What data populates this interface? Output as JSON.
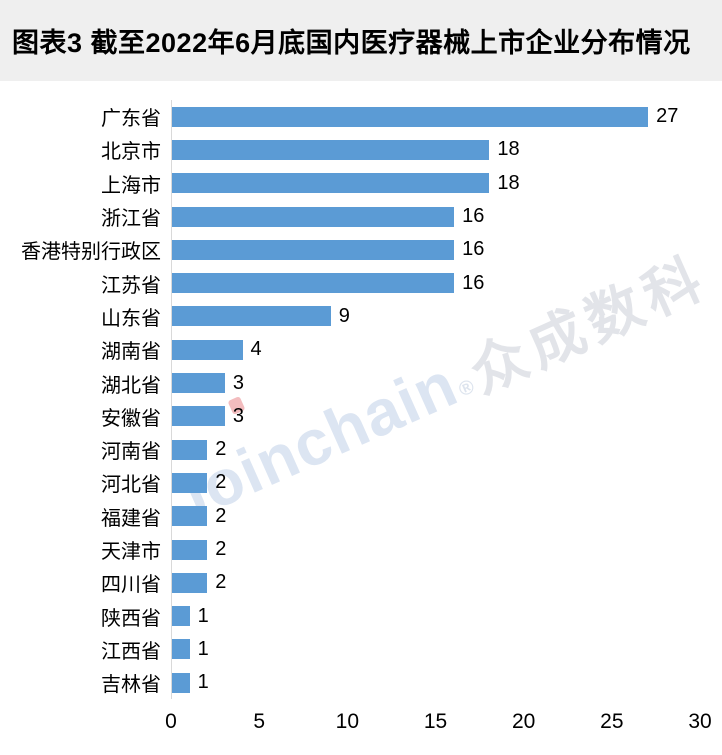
{
  "title": "图表3 截至2022年6月底国内医疗器械上市企业分布情况",
  "watermark": {
    "brand": "Joinchain",
    "reg": "®",
    "cn": "众成数科"
  },
  "colors": {
    "bar": "#5B9BD5",
    "title_background": "#EFEFEF",
    "axis_line": "#D9D9D9",
    "text": "#000000",
    "watermark_brand": "#DCE5F2",
    "watermark_cn": "#E2E4E9",
    "watermark_dot": "#F3BCBE"
  },
  "chart_data": {
    "type": "bar",
    "orientation": "horizontal",
    "title": "图表3 截至2022年6月底国内医疗器械上市企业分布情况",
    "categories": [
      "广东省",
      "北京市",
      "上海市",
      "浙江省",
      "香港特别行政区",
      "江苏省",
      "山东省",
      "湖南省",
      "湖北省",
      "安徽省",
      "河南省",
      "河北省",
      "福建省",
      "天津市",
      "四川省",
      "陕西省",
      "江西省",
      "吉林省"
    ],
    "values": [
      27,
      18,
      18,
      16,
      16,
      16,
      9,
      4,
      3,
      3,
      2,
      2,
      2,
      2,
      2,
      1,
      1,
      1
    ],
    "x_ticks": [
      0,
      5,
      10,
      15,
      20,
      25,
      30
    ],
    "xlim": [
      0,
      30
    ],
    "xlabel": "",
    "ylabel": "",
    "grid": false,
    "data_labels": true,
    "legend": "none"
  }
}
